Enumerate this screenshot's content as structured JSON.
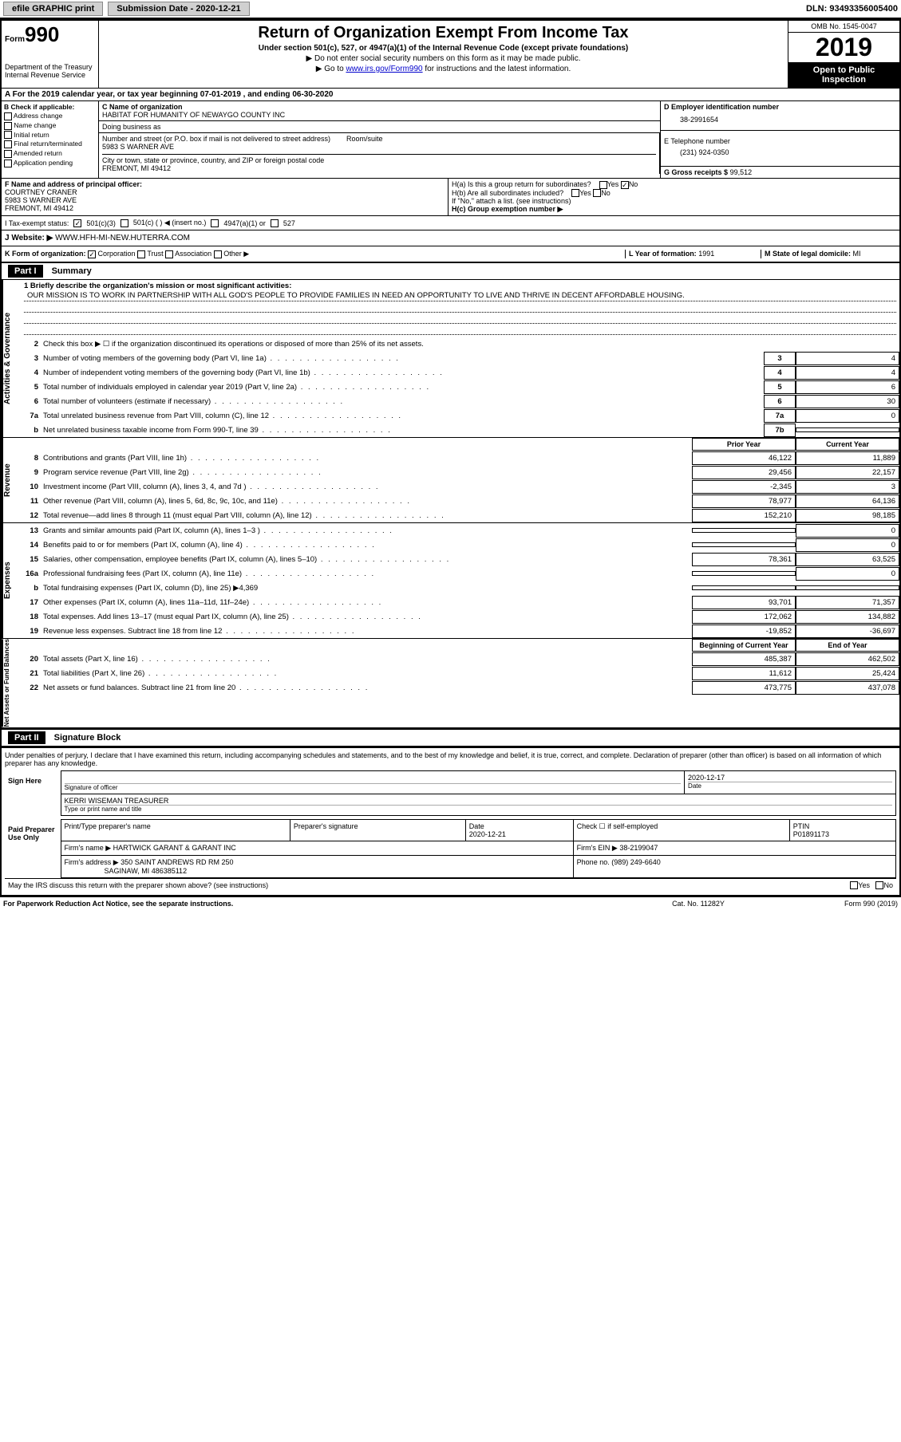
{
  "header": {
    "efile_link": "efile GRAPHIC print",
    "submission_label": "Submission Date - 2020-12-21",
    "dln": "DLN: 93493356005400"
  },
  "form_meta": {
    "form_word": "Form",
    "form_number": "990",
    "dept": "Department of the Treasury\nInternal Revenue Service",
    "title": "Return of Organization Exempt From Income Tax",
    "subtitle": "Under section 501(c), 527, or 4947(a)(1) of the Internal Revenue Code (except private foundations)",
    "note1": "▶ Do not enter social security numbers on this form as it may be made public.",
    "note2_pre": "▶ Go to ",
    "note2_link": "www.irs.gov/Form990",
    "note2_post": " for instructions and the latest information.",
    "omb": "OMB No. 1545-0047",
    "year": "2019",
    "open_public": "Open to Public Inspection"
  },
  "row_a": "A For the 2019 calendar year, or tax year beginning 07-01-2019   , and ending 06-30-2020",
  "col_b": {
    "header": "B Check if applicable:",
    "items": [
      "Address change",
      "Name change",
      "Initial return",
      "Final return/terminated",
      "Amended return",
      "Application pending"
    ]
  },
  "col_c": {
    "name_label": "C Name of organization",
    "name": "HABITAT FOR HUMANITY OF NEWAYGO COUNTY INC",
    "dba_label": "Doing business as",
    "dba": "",
    "addr_label": "Number and street (or P.O. box if mail is not delivered to street address)",
    "room_label": "Room/suite",
    "addr": "5983 S WARNER AVE",
    "city_label": "City or town, state or province, country, and ZIP or foreign postal code",
    "city": "FREMONT, MI  49412"
  },
  "col_d": {
    "label": "D Employer identification number",
    "ein": "38-2991654"
  },
  "col_e": {
    "label": "E Telephone number",
    "tel": "(231) 924-0350"
  },
  "col_g": {
    "label": "G Gross receipts $",
    "val": "99,512"
  },
  "col_f": {
    "label": "F Name and address of principal officer:",
    "name": "COURTNEY CRANER",
    "addr1": "5983 S WARNER AVE",
    "addr2": "FREMONT, MI  49412"
  },
  "col_h": {
    "ha": "H(a)  Is this a group return for subordinates?",
    "ha_yes": "Yes",
    "ha_no": "No",
    "hb": "H(b)  Are all subordinates included?",
    "hb_yes": "Yes",
    "hb_no": "No",
    "hb_note": "If \"No,\" attach a list. (see instructions)",
    "hc": "H(c)  Group exemption number ▶"
  },
  "tax_status": {
    "label": "I   Tax-exempt status:",
    "opt1": "501(c)(3)",
    "opt2": "501(c) (  ) ◀ (insert no.)",
    "opt3": "4947(a)(1) or",
    "opt4": "527"
  },
  "website": {
    "label": "J   Website: ▶",
    "val": "WWW.HFH-MI-NEW.HUTERRA.COM"
  },
  "row_k": {
    "label": "K Form of organization:",
    "opts": [
      "Corporation",
      "Trust",
      "Association",
      "Other ▶"
    ],
    "l_label": "L Year of formation:",
    "l_val": "1991",
    "m_label": "M State of legal domicile:",
    "m_val": "MI"
  },
  "part1": {
    "header": "Part I",
    "title": "Summary",
    "line1_label": "1  Briefly describe the organization's mission or most significant activities:",
    "mission": "OUR MISSION IS TO WORK IN PARTNERSHIP WITH ALL GOD'S PEOPLE TO PROVIDE FAMILIES IN NEED AN OPPORTUNITY TO LIVE AND THRIVE IN DECENT AFFORDABLE HOUSING.",
    "line2": "Check this box ▶ ☐  if the organization discontinued its operations or disposed of more than 25% of its net assets.",
    "sections": {
      "activities": {
        "label": "Activities & Governance",
        "rows": [
          {
            "n": "3",
            "d": "Number of voting members of the governing body (Part VI, line 1a)",
            "box": "3",
            "v": "4"
          },
          {
            "n": "4",
            "d": "Number of independent voting members of the governing body (Part VI, line 1b)",
            "box": "4",
            "v": "4"
          },
          {
            "n": "5",
            "d": "Total number of individuals employed in calendar year 2019 (Part V, line 2a)",
            "box": "5",
            "v": "6"
          },
          {
            "n": "6",
            "d": "Total number of volunteers (estimate if necessary)",
            "box": "6",
            "v": "30"
          },
          {
            "n": "7a",
            "d": "Total unrelated business revenue from Part VIII, column (C), line 12",
            "box": "7a",
            "v": "0"
          },
          {
            "n": "b",
            "d": "Net unrelated business taxable income from Form 990-T, line 39",
            "box": "7b",
            "v": ""
          }
        ]
      },
      "revenue": {
        "label": "Revenue",
        "header_prior": "Prior Year",
        "header_current": "Current Year",
        "rows": [
          {
            "n": "8",
            "d": "Contributions and grants (Part VIII, line 1h)",
            "p": "46,122",
            "c": "11,889"
          },
          {
            "n": "9",
            "d": "Program service revenue (Part VIII, line 2g)",
            "p": "29,456",
            "c": "22,157"
          },
          {
            "n": "10",
            "d": "Investment income (Part VIII, column (A), lines 3, 4, and 7d )",
            "p": "-2,345",
            "c": "3"
          },
          {
            "n": "11",
            "d": "Other revenue (Part VIII, column (A), lines 5, 6d, 8c, 9c, 10c, and 11e)",
            "p": "78,977",
            "c": "64,136"
          },
          {
            "n": "12",
            "d": "Total revenue—add lines 8 through 11 (must equal Part VIII, column (A), line 12)",
            "p": "152,210",
            "c": "98,185"
          }
        ]
      },
      "expenses": {
        "label": "Expenses",
        "rows": [
          {
            "n": "13",
            "d": "Grants and similar amounts paid (Part IX, column (A), lines 1–3 )",
            "p": "",
            "c": "0"
          },
          {
            "n": "14",
            "d": "Benefits paid to or for members (Part IX, column (A), line 4)",
            "p": "",
            "c": "0"
          },
          {
            "n": "15",
            "d": "Salaries, other compensation, employee benefits (Part IX, column (A), lines 5–10)",
            "p": "78,361",
            "c": "63,525"
          },
          {
            "n": "16a",
            "d": "Professional fundraising fees (Part IX, column (A), line 11e)",
            "p": "",
            "c": "0"
          },
          {
            "n": "b",
            "d": "Total fundraising expenses (Part IX, column (D), line 25) ▶4,369",
            "p": null,
            "c": null
          },
          {
            "n": "17",
            "d": "Other expenses (Part IX, column (A), lines 11a–11d, 11f–24e)",
            "p": "93,701",
            "c": "71,357"
          },
          {
            "n": "18",
            "d": "Total expenses. Add lines 13–17 (must equal Part IX, column (A), line 25)",
            "p": "172,062",
            "c": "134,882"
          },
          {
            "n": "19",
            "d": "Revenue less expenses. Subtract line 18 from line 12",
            "p": "-19,852",
            "c": "-36,697"
          }
        ]
      },
      "netassets": {
        "label": "Net Assets or Fund Balances",
        "header_begin": "Beginning of Current Year",
        "header_end": "End of Year",
        "rows": [
          {
            "n": "20",
            "d": "Total assets (Part X, line 16)",
            "p": "485,387",
            "c": "462,502"
          },
          {
            "n": "21",
            "d": "Total liabilities (Part X, line 26)",
            "p": "11,612",
            "c": "25,424"
          },
          {
            "n": "22",
            "d": "Net assets or fund balances. Subtract line 21 from line 20",
            "p": "473,775",
            "c": "437,078"
          }
        ]
      }
    }
  },
  "part2": {
    "header": "Part II",
    "title": "Signature Block",
    "declaration": "Under penalties of perjury, I declare that I have examined this return, including accompanying schedules and statements, and to the best of my knowledge and belief, it is true, correct, and complete. Declaration of preparer (other than officer) is based on all information of which preparer has any knowledge.",
    "sign_here": "Sign Here",
    "sig_officer": "Signature of officer",
    "sig_date": "2020-12-17",
    "date_label": "Date",
    "officer_name": "KERRI WISEMAN  TREASURER",
    "type_name": "Type or print name and title",
    "paid": "Paid Preparer Use Only",
    "prep_name_label": "Print/Type preparer's name",
    "prep_sig_label": "Preparer's signature",
    "prep_date_label": "Date",
    "prep_date": "2020-12-21",
    "check_self": "Check ☐ if self-employed",
    "ptin_label": "PTIN",
    "ptin": "P01891173",
    "firm_name_label": "Firm's name    ▶",
    "firm_name": "HARTWICK GARANT & GARANT INC",
    "firm_ein_label": "Firm's EIN ▶",
    "firm_ein": "38-2199047",
    "firm_addr_label": "Firm's address ▶",
    "firm_addr": "350 SAINT ANDREWS RD RM 250",
    "firm_addr2": "SAGINAW, MI  486385112",
    "phone_label": "Phone no.",
    "phone": "(989) 249-6640",
    "discuss": "May the IRS discuss this return with the preparer shown above? (see instructions)",
    "discuss_yes": "Yes",
    "discuss_no": "No"
  },
  "footer": {
    "notice": "For Paperwork Reduction Act Notice, see the separate instructions.",
    "cat": "Cat. No. 11282Y",
    "form": "Form 990 (2019)"
  }
}
